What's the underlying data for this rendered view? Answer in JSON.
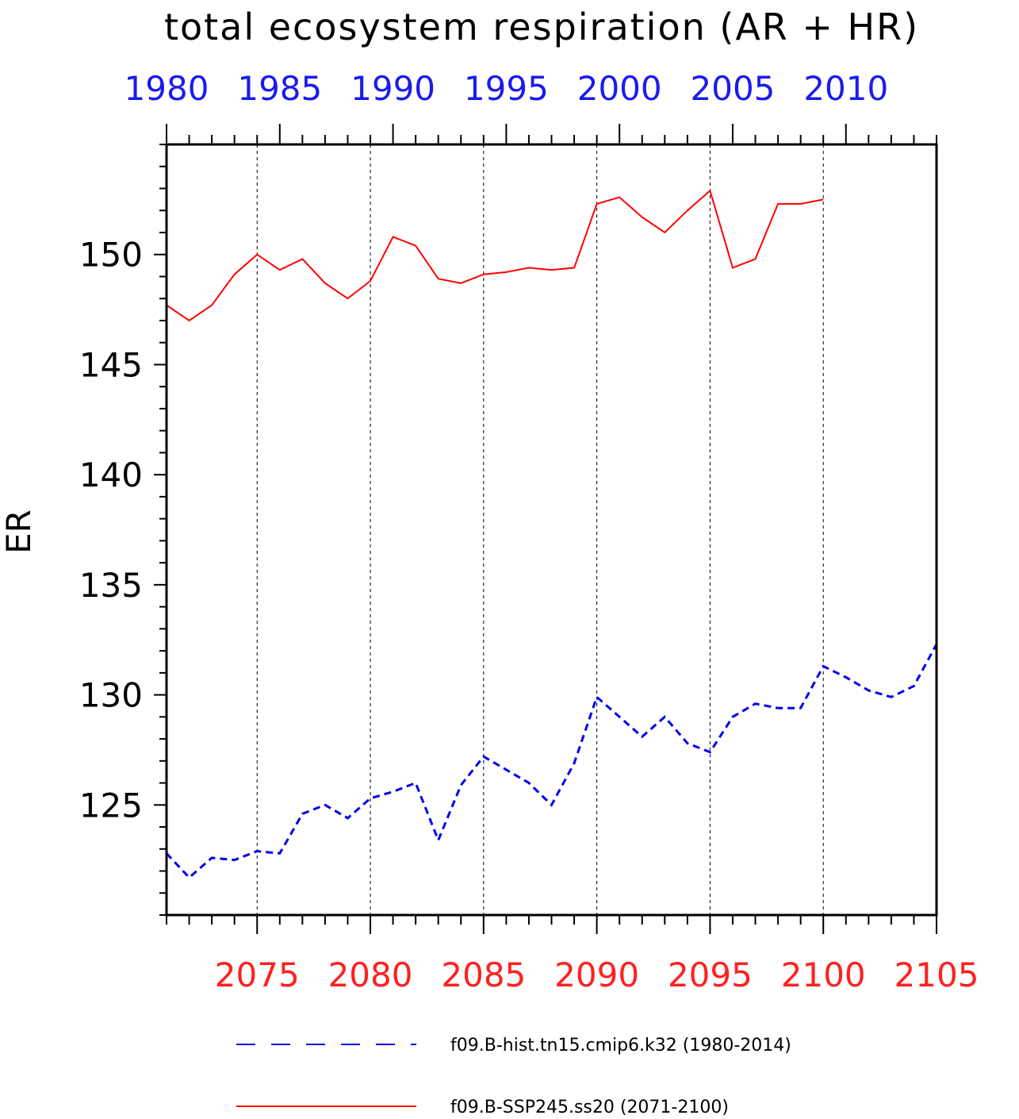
{
  "chart_data": {
    "type": "line",
    "title": "total ecosystem respiration (AR + HR)",
    "ylabel": "ER",
    "ylim": [
      120,
      155
    ],
    "yticks": [
      125,
      130,
      135,
      140,
      145,
      150
    ],
    "bottom_axis": {
      "color": "#ff2020",
      "range": [
        2071,
        2105
      ],
      "ticks": [
        2075,
        2080,
        2085,
        2090,
        2095,
        2100,
        2105
      ]
    },
    "top_axis": {
      "color": "#1a1aee",
      "range": [
        1980,
        2014
      ],
      "ticks": [
        1980,
        1985,
        1990,
        1995,
        2000,
        2005,
        2010
      ]
    },
    "grid": "vertical dashed at major ticks",
    "legend_position": "bottom",
    "series": [
      {
        "name": "f09.B-hist.tn15.cmip6.k32 (1980-2014)",
        "axis": "top",
        "color": "#0000ee",
        "style": "dashed",
        "x": [
          1980,
          1981,
          1982,
          1983,
          1984,
          1985,
          1986,
          1987,
          1988,
          1989,
          1990,
          1991,
          1992,
          1993,
          1994,
          1995,
          1996,
          1997,
          1998,
          1999,
          2000,
          2001,
          2002,
          2003,
          2004,
          2005,
          2006,
          2007,
          2008,
          2009,
          2010,
          2011,
          2012,
          2013,
          2014
        ],
        "y": [
          122.8,
          121.7,
          122.6,
          122.5,
          122.9,
          122.8,
          124.6,
          125.0,
          124.4,
          125.3,
          125.6,
          126.0,
          123.4,
          125.9,
          127.2,
          126.6,
          126.0,
          125.0,
          126.9,
          129.9,
          129.0,
          128.1,
          129.0,
          127.8,
          127.4,
          129.0,
          129.6,
          129.4,
          129.4,
          131.3,
          130.8,
          130.2,
          129.9,
          130.4,
          132.3
        ]
      },
      {
        "name": "f09.B-SSP245.ss20 (2071-2100)",
        "axis": "bottom",
        "color": "#ff0000",
        "style": "solid",
        "x": [
          2071,
          2072,
          2073,
          2074,
          2075,
          2076,
          2077,
          2078,
          2079,
          2080,
          2081,
          2082,
          2083,
          2084,
          2085,
          2086,
          2087,
          2088,
          2089,
          2090,
          2091,
          2092,
          2093,
          2094,
          2095,
          2096,
          2097,
          2098,
          2099,
          2100
        ],
        "y": [
          147.7,
          147.0,
          147.7,
          149.1,
          150.0,
          149.3,
          149.8,
          148.7,
          148.0,
          148.8,
          150.8,
          150.4,
          148.9,
          148.7,
          149.1,
          149.2,
          149.4,
          149.3,
          149.4,
          152.3,
          152.6,
          151.7,
          151.0,
          152.0,
          152.9,
          149.4,
          149.8,
          152.3,
          152.3,
          152.5
        ]
      }
    ]
  }
}
